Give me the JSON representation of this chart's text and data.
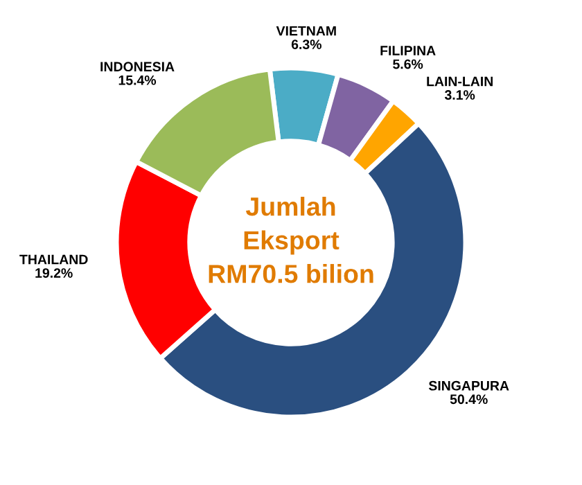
{
  "chart_data": {
    "type": "donut",
    "categories": [
      "VIETNAM",
      "FILIPINA",
      "LAIN-LAIN",
      "SINGAPURA",
      "THAILAND",
      "INDONESIA"
    ],
    "values": [
      6.3,
      5.6,
      3.1,
      50.4,
      19.2,
      15.4
    ],
    "value_labels": [
      "6.3%",
      "5.6%",
      "3.1%",
      "50.4%",
      "19.2%",
      "15.4%"
    ],
    "colors": [
      "#4bacc6",
      "#8064a2",
      "#ffa500",
      "#2a4f80",
      "#ff0000",
      "#9bbb59"
    ],
    "annotations": [
      "Jumlah\nEksport\nRM70.5 bilion"
    ],
    "legend": false
  }
}
